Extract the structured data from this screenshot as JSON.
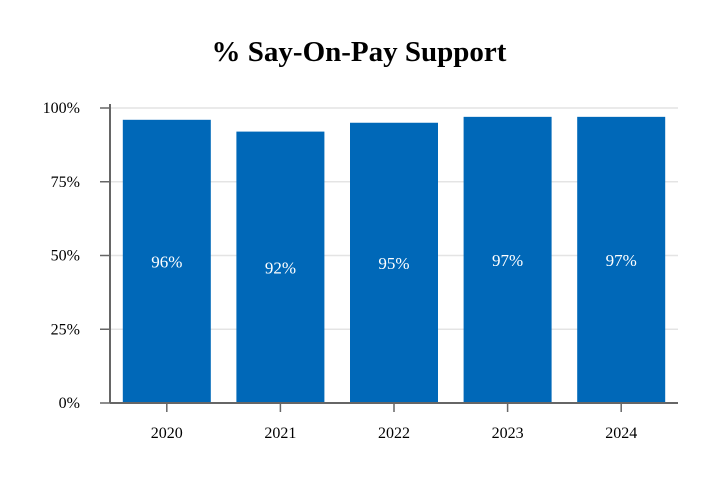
{
  "chart_data": {
    "type": "bar",
    "title": "% Say-On-Pay Support",
    "xlabel": "",
    "ylabel": "",
    "categories": [
      "2020",
      "2021",
      "2022",
      "2023",
      "2024"
    ],
    "values": [
      96,
      92,
      95,
      97,
      97
    ],
    "data_labels": [
      "96%",
      "92%",
      "95%",
      "97%",
      "97%"
    ],
    "y_ticks": [
      0,
      25,
      50,
      75,
      100
    ],
    "y_tick_labels": [
      "0%",
      "25%",
      "50%",
      "75%",
      "100%"
    ],
    "ylim": [
      0,
      100
    ],
    "grid": true,
    "legend": "none",
    "colors": {
      "bar": "#0068b8",
      "grid": "#e4e4e4",
      "axis": "#666666",
      "data_label": "#ffffff"
    }
  }
}
